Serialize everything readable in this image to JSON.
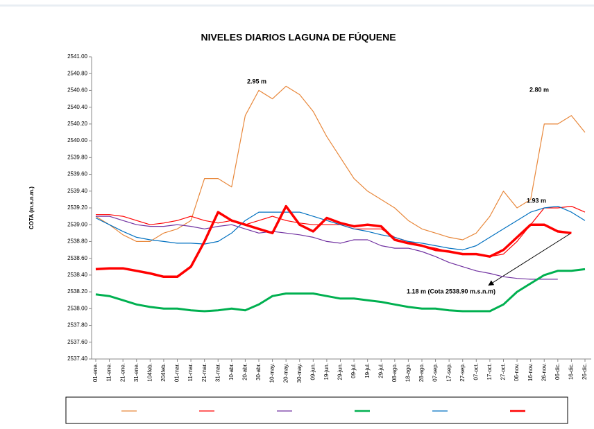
{
  "chart_data": {
    "type": "line",
    "title": "NIVELES DIARIOS LAGUNA DE FÚQUENE",
    "y_label": "COTA (m.s.n.m.)",
    "categories": [
      "01-ene.",
      "11-ene.",
      "21-ene.",
      "31-ene.",
      "104feb.",
      "204feb.",
      "01-mar.",
      "11-mar.",
      "21-mar.",
      "31-mar.",
      "10-abr.",
      "20-abr.",
      "30-abr.",
      "10-may.",
      "20-may.",
      "30-may.",
      "09-jun.",
      "19-jun.",
      "29-jun.",
      "09-jul.",
      "19-jul.",
      "29-jul.",
      "08-ago.",
      "18-ago.",
      "28-ago.",
      "07-sep.",
      "17-sep.",
      "27-sep.",
      "07-oct.",
      "17-oct.",
      "27-oct.",
      "06-nov.",
      "16-nov.",
      "26-nov.",
      "06-dic.",
      "16-dic.",
      "26-dic."
    ],
    "ylim": [
      2537.4,
      2541.0
    ],
    "yticks": [
      {
        "value": 2537.4,
        "label": "2537.40"
      },
      {
        "value": 2537.6,
        "label": "2537.60"
      },
      {
        "value": 2537.8,
        "label": "2537.80"
      },
      {
        "value": 2538.0,
        "label": "2538.00"
      },
      {
        "value": 2538.2,
        "label": "2538.20"
      },
      {
        "value": 2538.4,
        "label": "2538.40"
      },
      {
        "value": 2538.6,
        "label": "2538.60"
      },
      {
        "value": 2538.8,
        "label": "2538.80"
      },
      {
        "value": 2539.0,
        "label": "2539.00"
      },
      {
        "value": 2539.2,
        "label": "2539.20"
      },
      {
        "value": 2539.4,
        "label": "2539.40"
      },
      {
        "value": 2539.6,
        "label": "2539.60"
      },
      {
        "value": 2539.8,
        "label": "2539.80"
      },
      {
        "value": 2540.0,
        "label": "2540.00"
      },
      {
        "value": 2540.2,
        "label": "2540.20"
      },
      {
        "value": 2540.4,
        "label": "2540.40"
      },
      {
        "value": 2540.6,
        "label": "2540.60"
      },
      {
        "value": 2540.8,
        "label": "2540.80"
      },
      {
        "value": 2541.0,
        "label": "2541.00"
      }
    ],
    "grid": false,
    "series": [
      {
        "color": "#e8873a",
        "linewidth": 1.2,
        "values": [
          2539.1,
          2539.0,
          2538.88,
          2538.8,
          2538.8,
          2538.9,
          2538.95,
          2539.05,
          2539.55,
          2539.55,
          2539.45,
          2540.3,
          2540.6,
          2540.5,
          2540.65,
          2540.55,
          2540.35,
          2540.05,
          2539.8,
          2539.55,
          2539.4,
          2539.3,
          2539.2,
          2539.05,
          2538.95,
          2538.9,
          2538.85,
          2538.82,
          2538.9,
          2539.1,
          2539.4,
          2539.2,
          2539.3,
          2540.2,
          2540.2,
          2540.3,
          2540.1
        ]
      },
      {
        "color": "#ff0000",
        "linewidth": 1.2,
        "values": [
          2539.12,
          2539.12,
          2539.1,
          2539.05,
          2539.0,
          2539.02,
          2539.05,
          2539.1,
          2539.05,
          2539.02,
          2539.05,
          2539.0,
          2539.05,
          2539.1,
          2539.05,
          2539.02,
          2539.0,
          2539.0,
          2539.0,
          2538.95,
          2538.95,
          2538.95,
          2538.85,
          2538.8,
          2538.75,
          2538.72,
          2538.68,
          2538.65,
          2538.65,
          2538.62,
          2538.65,
          2538.8,
          2539.0,
          2539.2,
          2539.2,
          2539.22,
          2539.15
        ]
      },
      {
        "color": "#7030a0",
        "linewidth": 1.2,
        "values": [
          2539.1,
          2539.1,
          2539.05,
          2539.0,
          2538.98,
          2538.98,
          2539.0,
          2538.98,
          2538.95,
          2538.98,
          2539.0,
          2538.95,
          2538.9,
          2538.92,
          2538.9,
          2538.88,
          2538.85,
          2538.8,
          2538.78,
          2538.82,
          2538.82,
          2538.75,
          2538.72,
          2538.72,
          2538.68,
          2538.62,
          2538.55,
          2538.5,
          2538.45,
          2538.42,
          2538.38,
          2538.36,
          2538.35,
          2538.35,
          2538.35,
          null,
          null
        ]
      },
      {
        "color": "#00b050",
        "linewidth": 3,
        "values": [
          2538.17,
          2538.15,
          2538.1,
          2538.05,
          2538.02,
          2538.0,
          2538.0,
          2537.98,
          2537.97,
          2537.98,
          2538.0,
          2537.98,
          2538.05,
          2538.15,
          2538.18,
          2538.18,
          2538.18,
          2538.15,
          2538.12,
          2538.12,
          2538.1,
          2538.08,
          2538.05,
          2538.02,
          2538.0,
          2538.0,
          2537.98,
          2537.97,
          2537.97,
          2537.97,
          2538.05,
          2538.2,
          2538.3,
          2538.4,
          2538.45,
          2538.45,
          2538.47
        ]
      },
      {
        "color": "#0070c0",
        "linewidth": 1.2,
        "values": [
          2539.08,
          2539.0,
          2538.92,
          2538.85,
          2538.82,
          2538.8,
          2538.78,
          2538.78,
          2538.77,
          2538.8,
          2538.9,
          2539.05,
          2539.15,
          2539.15,
          2539.15,
          2539.15,
          2539.1,
          2539.05,
          2539.0,
          2538.95,
          2538.92,
          2538.88,
          2538.85,
          2538.8,
          2538.78,
          2538.75,
          2538.72,
          2538.7,
          2538.75,
          2538.85,
          2538.95,
          2539.05,
          2539.15,
          2539.2,
          2539.22,
          2539.15,
          2539.05
        ]
      },
      {
        "color": "#ff0000",
        "linewidth": 3.5,
        "values": [
          2538.47,
          2538.48,
          2538.48,
          2538.45,
          2538.42,
          2538.38,
          2538.38,
          2538.5,
          2538.8,
          2539.15,
          2539.05,
          2539.0,
          2538.95,
          2538.9,
          2539.22,
          2539.0,
          2538.92,
          2539.08,
          2539.02,
          2538.98,
          2539.0,
          2538.98,
          2538.82,
          2538.78,
          2538.75,
          2538.7,
          2538.68,
          2538.65,
          2538.65,
          2538.62,
          2538.7,
          2538.85,
          2539.0,
          2539.0,
          2538.92,
          2538.9,
          null
        ]
      }
    ],
    "annotations": [
      "2.95 m",
      "2.80 m",
      "1.93 m",
      "1.18 m (Cota 2538.90 m.s.n.m)"
    ]
  }
}
